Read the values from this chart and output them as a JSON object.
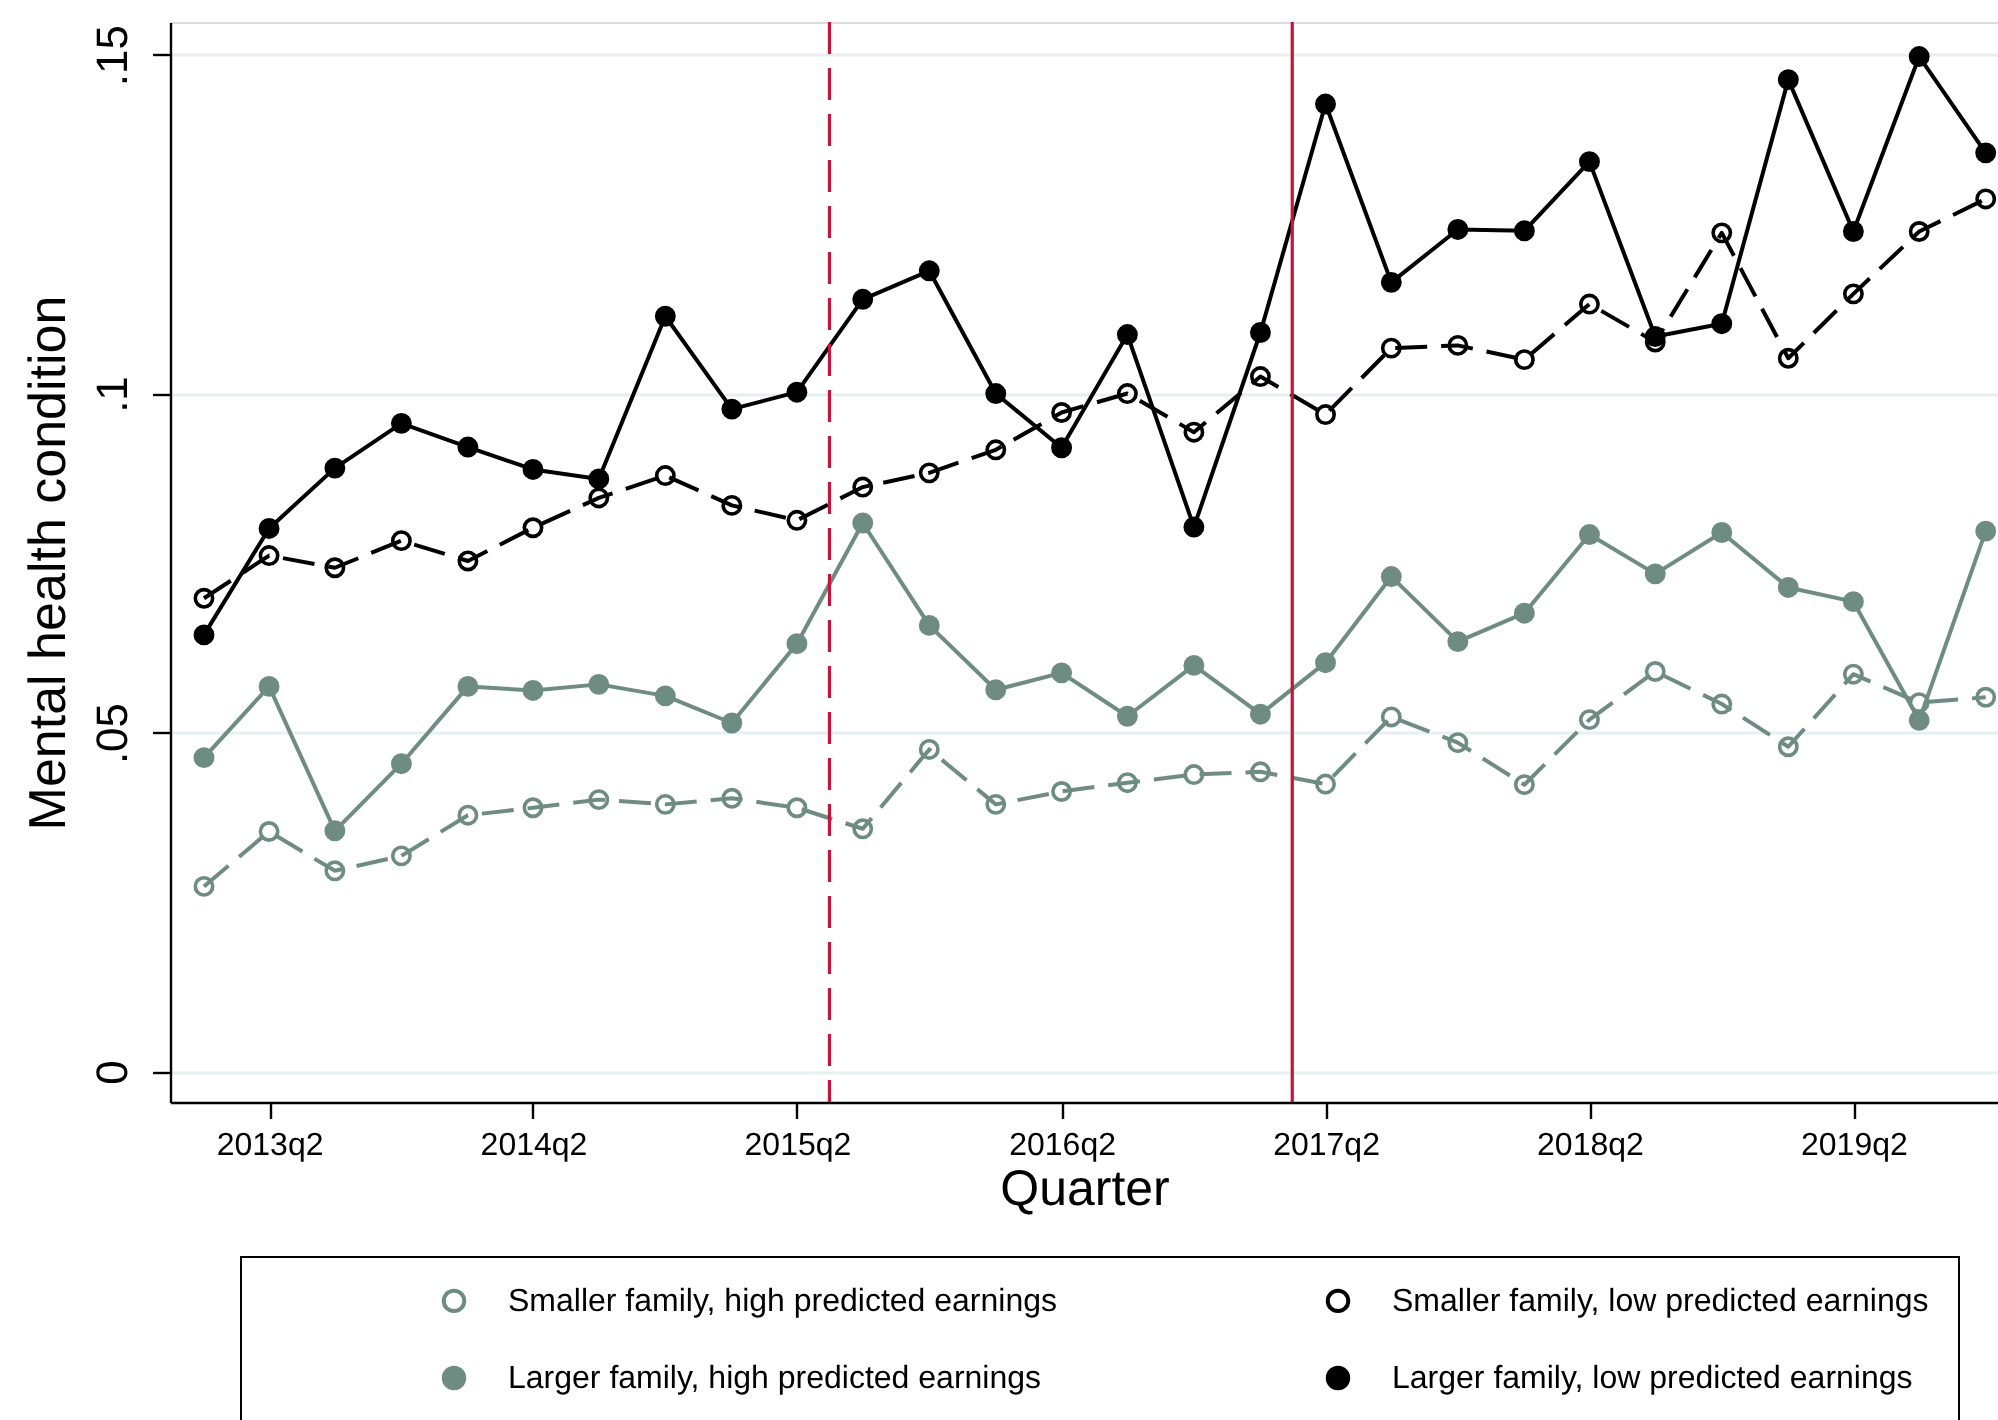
{
  "chart_data": {
    "type": "line",
    "xlabel": "Quarter",
    "ylabel": "Mental health condition",
    "x": [
      "2013-01",
      "2013-04",
      "2013-07",
      "2013-10",
      "2014-01",
      "2014-04",
      "2014-07",
      "2014-10",
      "2015-01",
      "2015-04",
      "2015-07",
      "2015-10",
      "2016-01",
      "2016-04",
      "2016-07",
      "2016-10",
      "2017-01",
      "2017-04",
      "2017-07",
      "2017-10",
      "2018-01",
      "2018-04",
      "2018-07",
      "2018-10",
      "2019-01",
      "2019-04",
      "2019-07",
      "2019-10"
    ],
    "xlim": [
      "2012-11-15",
      "2019-10-18"
    ],
    "xticks": [
      {
        "value": "2013-04",
        "label": "2013q2"
      },
      {
        "value": "2014-04",
        "label": "2014q2"
      },
      {
        "value": "2015-04",
        "label": "2015q2"
      },
      {
        "value": "2016-04",
        "label": "2016q2"
      },
      {
        "value": "2017-04",
        "label": "2017q2"
      },
      {
        "value": "2018-04",
        "label": "2018q2"
      },
      {
        "value": "2019-04",
        "label": "2019q2"
      }
    ],
    "ylim": [
      -0.0045,
      0.1548
    ],
    "yticks": [
      0,
      {
        "value": 0.05,
        "label": ".05"
      },
      {
        "value": 0.1,
        "label": ".1"
      },
      {
        "value": 0.15,
        "label": ".15"
      }
    ],
    "grid": "y",
    "legend": "bottom",
    "marker": "circle",
    "ref_lines": [
      {
        "axis": "x",
        "value": "2015-05-16",
        "color": "#c8143c",
        "line_style": "dashed"
      },
      {
        "axis": "x",
        "value": "2017-02-14",
        "color": "#c8143c",
        "line_style": "solid"
      }
    ],
    "series": [
      {
        "name": "Smaller family, high predicted earnings",
        "color": "#6e8c82",
        "line_style": "dashed",
        "values": [
          0.0273,
          0.0354,
          0.0296,
          0.0318,
          0.0378,
          0.0389,
          0.0401,
          0.0394,
          0.0403,
          0.0389,
          0.0358,
          0.0475,
          0.0394,
          0.0413,
          0.0426,
          0.0438,
          0.0442,
          0.0424,
          0.0523,
          0.0485,
          0.0423,
          0.0519,
          0.059,
          0.0542,
          0.0479,
          0.0586,
          0.0544,
          0.0552
        ]
      },
      {
        "name": "Smaller family, low predicted earnings",
        "color": "#000000",
        "line_style": "dashed",
        "values": [
          0.0698,
          0.0761,
          0.0743,
          0.0783,
          0.0753,
          0.0802,
          0.0846,
          0.0879,
          0.0835,
          0.0813,
          0.0862,
          0.0883,
          0.0917,
          0.0972,
          0.1,
          0.0943,
          0.1025,
          0.0969,
          0.1067,
          0.1071,
          0.105,
          0.1132,
          0.1076,
          0.1237,
          0.1052,
          0.1147,
          0.1239,
          0.1287
        ]
      },
      {
        "name": "Larger family, high predicted earnings",
        "color": "#6e8c82",
        "line_style": "solid",
        "values": [
          0.0463,
          0.0568,
          0.0355,
          0.0454,
          0.0568,
          0.0562,
          0.0571,
          0.0554,
          0.0514,
          0.0631,
          0.0809,
          0.0658,
          0.0563,
          0.0588,
          0.0524,
          0.0599,
          0.0527,
          0.0603,
          0.073,
          0.0634,
          0.0676,
          0.0792,
          0.0734,
          0.0795,
          0.0714,
          0.0693,
          0.0518,
          0.0797
        ]
      },
      {
        "name": "Larger family, low predicted earnings",
        "color": "#000000",
        "line_style": "solid",
        "values": [
          0.0644,
          0.0801,
          0.089,
          0.0956,
          0.0921,
          0.0888,
          0.0874,
          0.1114,
          0.0977,
          0.1002,
          0.1139,
          0.1181,
          0.1,
          0.092,
          0.1087,
          0.0803,
          0.109,
          0.1427,
          0.1164,
          0.1242,
          0.124,
          0.1342,
          0.1084,
          0.1103,
          0.1463,
          0.1239,
          0.1497,
          0.1355
        ]
      }
    ]
  }
}
